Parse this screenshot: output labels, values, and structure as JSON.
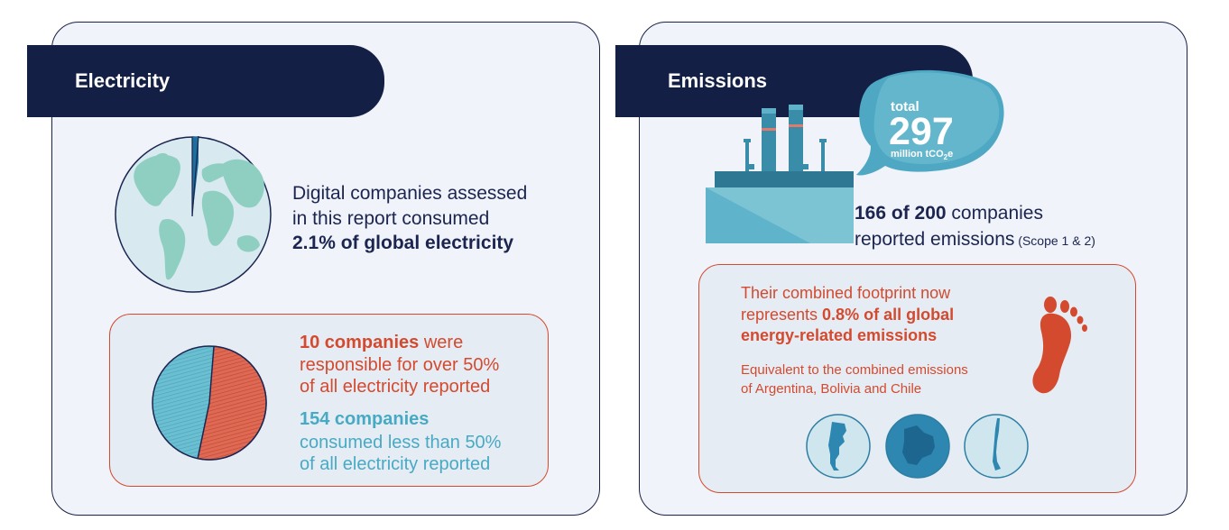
{
  "electricity": {
    "heading": "Electricity",
    "globe_share_percent": 2.1,
    "statement_line1": "Digital companies assessed",
    "statement_line2": "in this report consumed",
    "statement_highlight": "2.1% of global electricity",
    "split": {
      "top_share_percent": 52,
      "top_bold": "10 companies",
      "top_rest1": " were",
      "top_line2": "responsible for over 50%",
      "top_line3": "of all electricity reported",
      "rest_bold": "154 companies",
      "rest_line2": "consumed less than 50%",
      "rest_line3": "of all electricity reported"
    }
  },
  "emissions": {
    "heading": "Emissions",
    "cloud_label": "total",
    "total_value": "297",
    "total_unit_pre": "million tCO",
    "total_unit_sub": "2",
    "total_unit_post": "e",
    "reported_bold": "166 of 200",
    "reported_rest": " companies",
    "reported_line2": "reported emissions",
    "reported_scope": " (Scope 1 & 2)",
    "footprint_line1": "Their combined footprint now",
    "footprint_line2_pre": "represents ",
    "footprint_line2_bold": "0.8% of all global",
    "footprint_line3_bold": "energy-related emissions",
    "equivalent_line1": "Equivalent to the combined emissions",
    "equivalent_line2": "of Argentina, Bolivia and Chile",
    "countries": [
      "Argentina",
      "Bolivia",
      "Chile"
    ]
  },
  "colors": {
    "navy": "#141f45",
    "red": "#d44a2e",
    "teal": "#47aac4",
    "panel_bg": "#f0f3f9"
  }
}
